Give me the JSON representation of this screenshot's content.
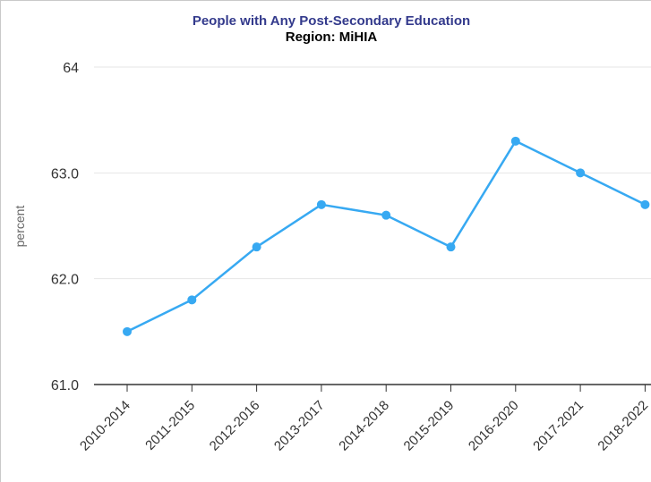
{
  "title": "People with Any Post-Secondary Education",
  "subtitle": "Region: MiHIA",
  "chart_data": {
    "type": "line",
    "title": "People with Any Post-Secondary Education",
    "subtitle": "Region: MiHIA",
    "xlabel": "",
    "ylabel": "percent",
    "categories": [
      "2010-2014",
      "2011-2015",
      "2012-2016",
      "2013-2017",
      "2014-2018",
      "2015-2019",
      "2016-2020",
      "2017-2021",
      "2018-2022"
    ],
    "series": [
      {
        "values": [
          61.5,
          61.8,
          62.3,
          62.7,
          62.6,
          62.3,
          63.3,
          63.0,
          62.7
        ]
      }
    ],
    "ylim": [
      61.0,
      64.0
    ],
    "yticks": [
      "61.0",
      "62.0",
      "63.0",
      "64"
    ],
    "grid": true,
    "color": "#37a9f2"
  }
}
